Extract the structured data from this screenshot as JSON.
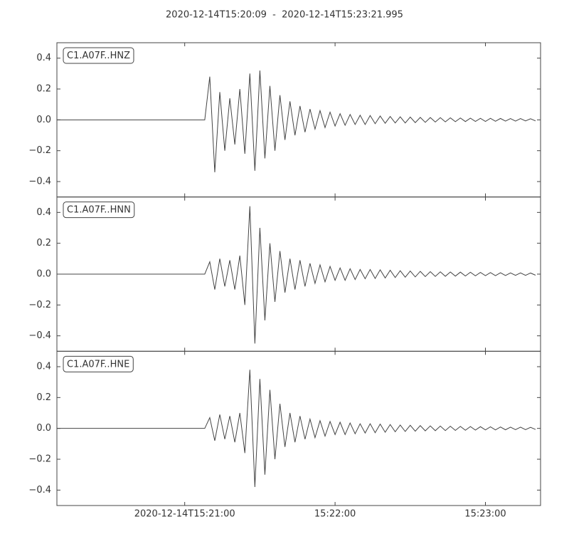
{
  "chart_data": [
    {
      "type": "line",
      "title": "2020-12-14T15:20:09  -  2020-12-14T15:23:21.995",
      "label": "C1.A07F..HNZ",
      "xlim": [
        "2020-12-14T15:20:09",
        "2020-12-14T15:23:21.995"
      ],
      "xticks": [
        "2020-12-14T15:21:00",
        {
          "value": "2020-12-14T15:22:00",
          "label": "15:22:00"
        },
        {
          "value": "2020-12-14T15:23:00",
          "label": "15:23:00"
        }
      ],
      "ylim": [
        -0.5,
        0.5
      ],
      "yticks": [
        {
          "value": -0.4,
          "label": "−0.4"
        },
        {
          "value": -0.2,
          "label": "−0.2"
        },
        {
          "value": 0,
          "label": "0.0"
        },
        0.2,
        0.4
      ],
      "color": "#444444",
      "x": [
        "15:20:09",
        "15:21:08",
        "15:21:10",
        "15:21:12",
        "15:21:14",
        "15:21:16",
        "15:21:18",
        "15:21:20",
        "15:21:22",
        "15:21:24",
        "15:21:26",
        "15:21:28",
        "15:21:30",
        "15:21:32",
        "15:21:34",
        "15:21:36",
        "15:21:38",
        "15:21:40",
        "15:21:42",
        "15:21:44",
        "15:21:46",
        "15:21:48",
        "15:21:50",
        "15:21:52",
        "15:21:54",
        "15:21:56",
        "15:21:58",
        "15:22:00",
        "15:22:02",
        "15:22:04",
        "15:22:06",
        "15:22:08",
        "15:22:10",
        "15:22:12",
        "15:22:14",
        "15:22:16",
        "15:22:18",
        "15:22:20",
        "15:22:22",
        "15:22:24",
        "15:22:26",
        "15:22:28",
        "15:22:30",
        "15:22:32",
        "15:22:34",
        "15:22:36",
        "15:22:38",
        "15:22:40",
        "15:22:42",
        "15:22:44",
        "15:22:46",
        "15:22:48",
        "15:22:50",
        "15:22:52",
        "15:22:54",
        "15:22:56",
        "15:22:58",
        "15:23:00",
        "15:23:02",
        "15:23:04",
        "15:23:06",
        "15:23:08",
        "15:23:10",
        "15:23:12",
        "15:23:14",
        "15:23:16",
        "15:23:18",
        "15:23:20"
      ],
      "values": [
        0,
        0,
        0.28,
        -0.34,
        0.18,
        -0.2,
        0.14,
        -0.16,
        0.2,
        -0.22,
        0.3,
        -0.33,
        0.32,
        -0.25,
        0.22,
        -0.2,
        0.16,
        -0.13,
        0.12,
        -0.1,
        0.09,
        -0.08,
        0.07,
        -0.06,
        0.06,
        -0.05,
        0.05,
        -0.04,
        0.04,
        -0.035,
        0.035,
        -0.03,
        0.03,
        -0.03,
        0.028,
        -0.025,
        0.025,
        -0.022,
        0.022,
        -0.02,
        0.02,
        -0.02,
        0.018,
        -0.018,
        0.016,
        -0.016,
        0.015,
        -0.014,
        0.014,
        -0.013,
        0.013,
        -0.012,
        0.012,
        -0.011,
        0.011,
        -0.01,
        0.01,
        -0.01,
        0.01,
        -0.009,
        0.009,
        -0.008,
        0.008,
        -0.008,
        0.008,
        -0.007,
        0.007,
        -0.007
      ]
    },
    {
      "type": "line",
      "label": "C1.A07F..HNN",
      "xlim": [
        "2020-12-14T15:20:09",
        "2020-12-14T15:23:21.995"
      ],
      "xticks": [
        "2020-12-14T15:21:00",
        "2020-12-14T15:22:00",
        "2020-12-14T15:23:00"
      ],
      "ylim": [
        -0.5,
        0.5
      ],
      "yticks": [
        {
          "value": -0.4,
          "label": "−0.4"
        },
        {
          "value": -0.2,
          "label": "−0.2"
        },
        {
          "value": 0,
          "label": "0.0"
        },
        0.2,
        0.4
      ],
      "color": "#444444",
      "x": [
        "15:20:09",
        "15:21:08",
        "15:21:10",
        "15:21:12",
        "15:21:14",
        "15:21:16",
        "15:21:18",
        "15:21:20",
        "15:21:22",
        "15:21:24",
        "15:21:26",
        "15:21:28",
        "15:21:30",
        "15:21:32",
        "15:21:34",
        "15:21:36",
        "15:21:38",
        "15:21:40",
        "15:21:42",
        "15:21:44",
        "15:21:46",
        "15:21:48",
        "15:21:50",
        "15:21:52",
        "15:21:54",
        "15:21:56",
        "15:21:58",
        "15:22:00",
        "15:22:02",
        "15:22:04",
        "15:22:06",
        "15:22:08",
        "15:22:10",
        "15:22:12",
        "15:22:14",
        "15:22:16",
        "15:22:18",
        "15:22:20",
        "15:22:22",
        "15:22:24",
        "15:22:26",
        "15:22:28",
        "15:22:30",
        "15:22:32",
        "15:22:34",
        "15:22:36",
        "15:22:38",
        "15:22:40",
        "15:22:42",
        "15:22:44",
        "15:22:46",
        "15:22:48",
        "15:22:50",
        "15:22:52",
        "15:22:54",
        "15:22:56",
        "15:22:58",
        "15:23:00",
        "15:23:02",
        "15:23:04",
        "15:23:06",
        "15:23:08",
        "15:23:10",
        "15:23:12",
        "15:23:14",
        "15:23:16",
        "15:23:18",
        "15:23:20"
      ],
      "values": [
        0,
        0,
        0.08,
        -0.1,
        0.1,
        -0.08,
        0.09,
        -0.1,
        0.12,
        -0.2,
        0.44,
        -0.45,
        0.3,
        -0.3,
        0.2,
        -0.18,
        0.15,
        -0.12,
        0.1,
        -0.1,
        0.09,
        -0.08,
        0.07,
        -0.06,
        0.06,
        -0.05,
        0.05,
        -0.04,
        0.04,
        -0.04,
        0.035,
        -0.035,
        0.03,
        -0.03,
        0.03,
        -0.028,
        0.028,
        -0.025,
        0.025,
        -0.022,
        0.022,
        -0.02,
        0.02,
        -0.018,
        0.018,
        -0.016,
        0.016,
        -0.015,
        0.015,
        -0.014,
        0.014,
        -0.013,
        0.013,
        -0.012,
        0.012,
        -0.011,
        0.011,
        -0.01,
        0.01,
        -0.01,
        0.009,
        -0.009,
        0.008,
        -0.008,
        0.008,
        -0.008,
        0.007,
        -0.007
      ]
    },
    {
      "type": "line",
      "label": "C1.A07F..HNE",
      "xlim": [
        "2020-12-14T15:20:09",
        "2020-12-14T15:23:21.995"
      ],
      "xticks": [
        "2020-12-14T15:21:00",
        {
          "value": "2020-12-14T15:22:00",
          "label": "15:22:00"
        },
        {
          "value": "2020-12-14T15:23:00",
          "label": "15:23:00"
        }
      ],
      "ylim": [
        -0.5,
        0.5
      ],
      "yticks": [
        {
          "value": -0.4,
          "label": "−0.4"
        },
        {
          "value": -0.2,
          "label": "−0.2"
        },
        {
          "value": 0,
          "label": "0.0"
        },
        0.2,
        0.4
      ],
      "color": "#444444",
      "x": [
        "15:20:09",
        "15:21:08",
        "15:21:10",
        "15:21:12",
        "15:21:14",
        "15:21:16",
        "15:21:18",
        "15:21:20",
        "15:21:22",
        "15:21:24",
        "15:21:26",
        "15:21:28",
        "15:21:30",
        "15:21:32",
        "15:21:34",
        "15:21:36",
        "15:21:38",
        "15:21:40",
        "15:21:42",
        "15:21:44",
        "15:21:46",
        "15:21:48",
        "15:21:50",
        "15:21:52",
        "15:21:54",
        "15:21:56",
        "15:21:58",
        "15:22:00",
        "15:22:02",
        "15:22:04",
        "15:22:06",
        "15:22:08",
        "15:22:10",
        "15:22:12",
        "15:22:14",
        "15:22:16",
        "15:22:18",
        "15:22:20",
        "15:22:22",
        "15:22:24",
        "15:22:26",
        "15:22:28",
        "15:22:30",
        "15:22:32",
        "15:22:34",
        "15:22:36",
        "15:22:38",
        "15:22:40",
        "15:22:42",
        "15:22:44",
        "15:22:46",
        "15:22:48",
        "15:22:50",
        "15:22:52",
        "15:22:54",
        "15:22:56",
        "15:22:58",
        "15:23:00",
        "15:23:02",
        "15:23:04",
        "15:23:06",
        "15:23:08",
        "15:23:10",
        "15:23:12",
        "15:23:14",
        "15:23:16",
        "15:23:18",
        "15:23:20"
      ],
      "values": [
        0,
        0,
        0.07,
        -0.08,
        0.09,
        -0.07,
        0.08,
        -0.09,
        0.1,
        -0.16,
        0.38,
        -0.38,
        0.32,
        -0.3,
        0.25,
        -0.2,
        0.16,
        -0.12,
        0.1,
        -0.09,
        0.08,
        -0.07,
        0.06,
        -0.06,
        0.05,
        -0.05,
        0.045,
        -0.04,
        0.04,
        -0.04,
        0.035,
        -0.035,
        0.03,
        -0.03,
        0.03,
        -0.028,
        0.028,
        -0.025,
        0.025,
        -0.022,
        0.022,
        -0.02,
        0.02,
        -0.018,
        0.018,
        -0.016,
        0.016,
        -0.015,
        0.015,
        -0.014,
        0.014,
        -0.013,
        0.013,
        -0.012,
        0.012,
        -0.011,
        0.011,
        -0.01,
        0.01,
        -0.01,
        0.009,
        -0.009,
        0.008,
        -0.008,
        0.008,
        -0.008,
        0.007,
        -0.007
      ]
    }
  ]
}
